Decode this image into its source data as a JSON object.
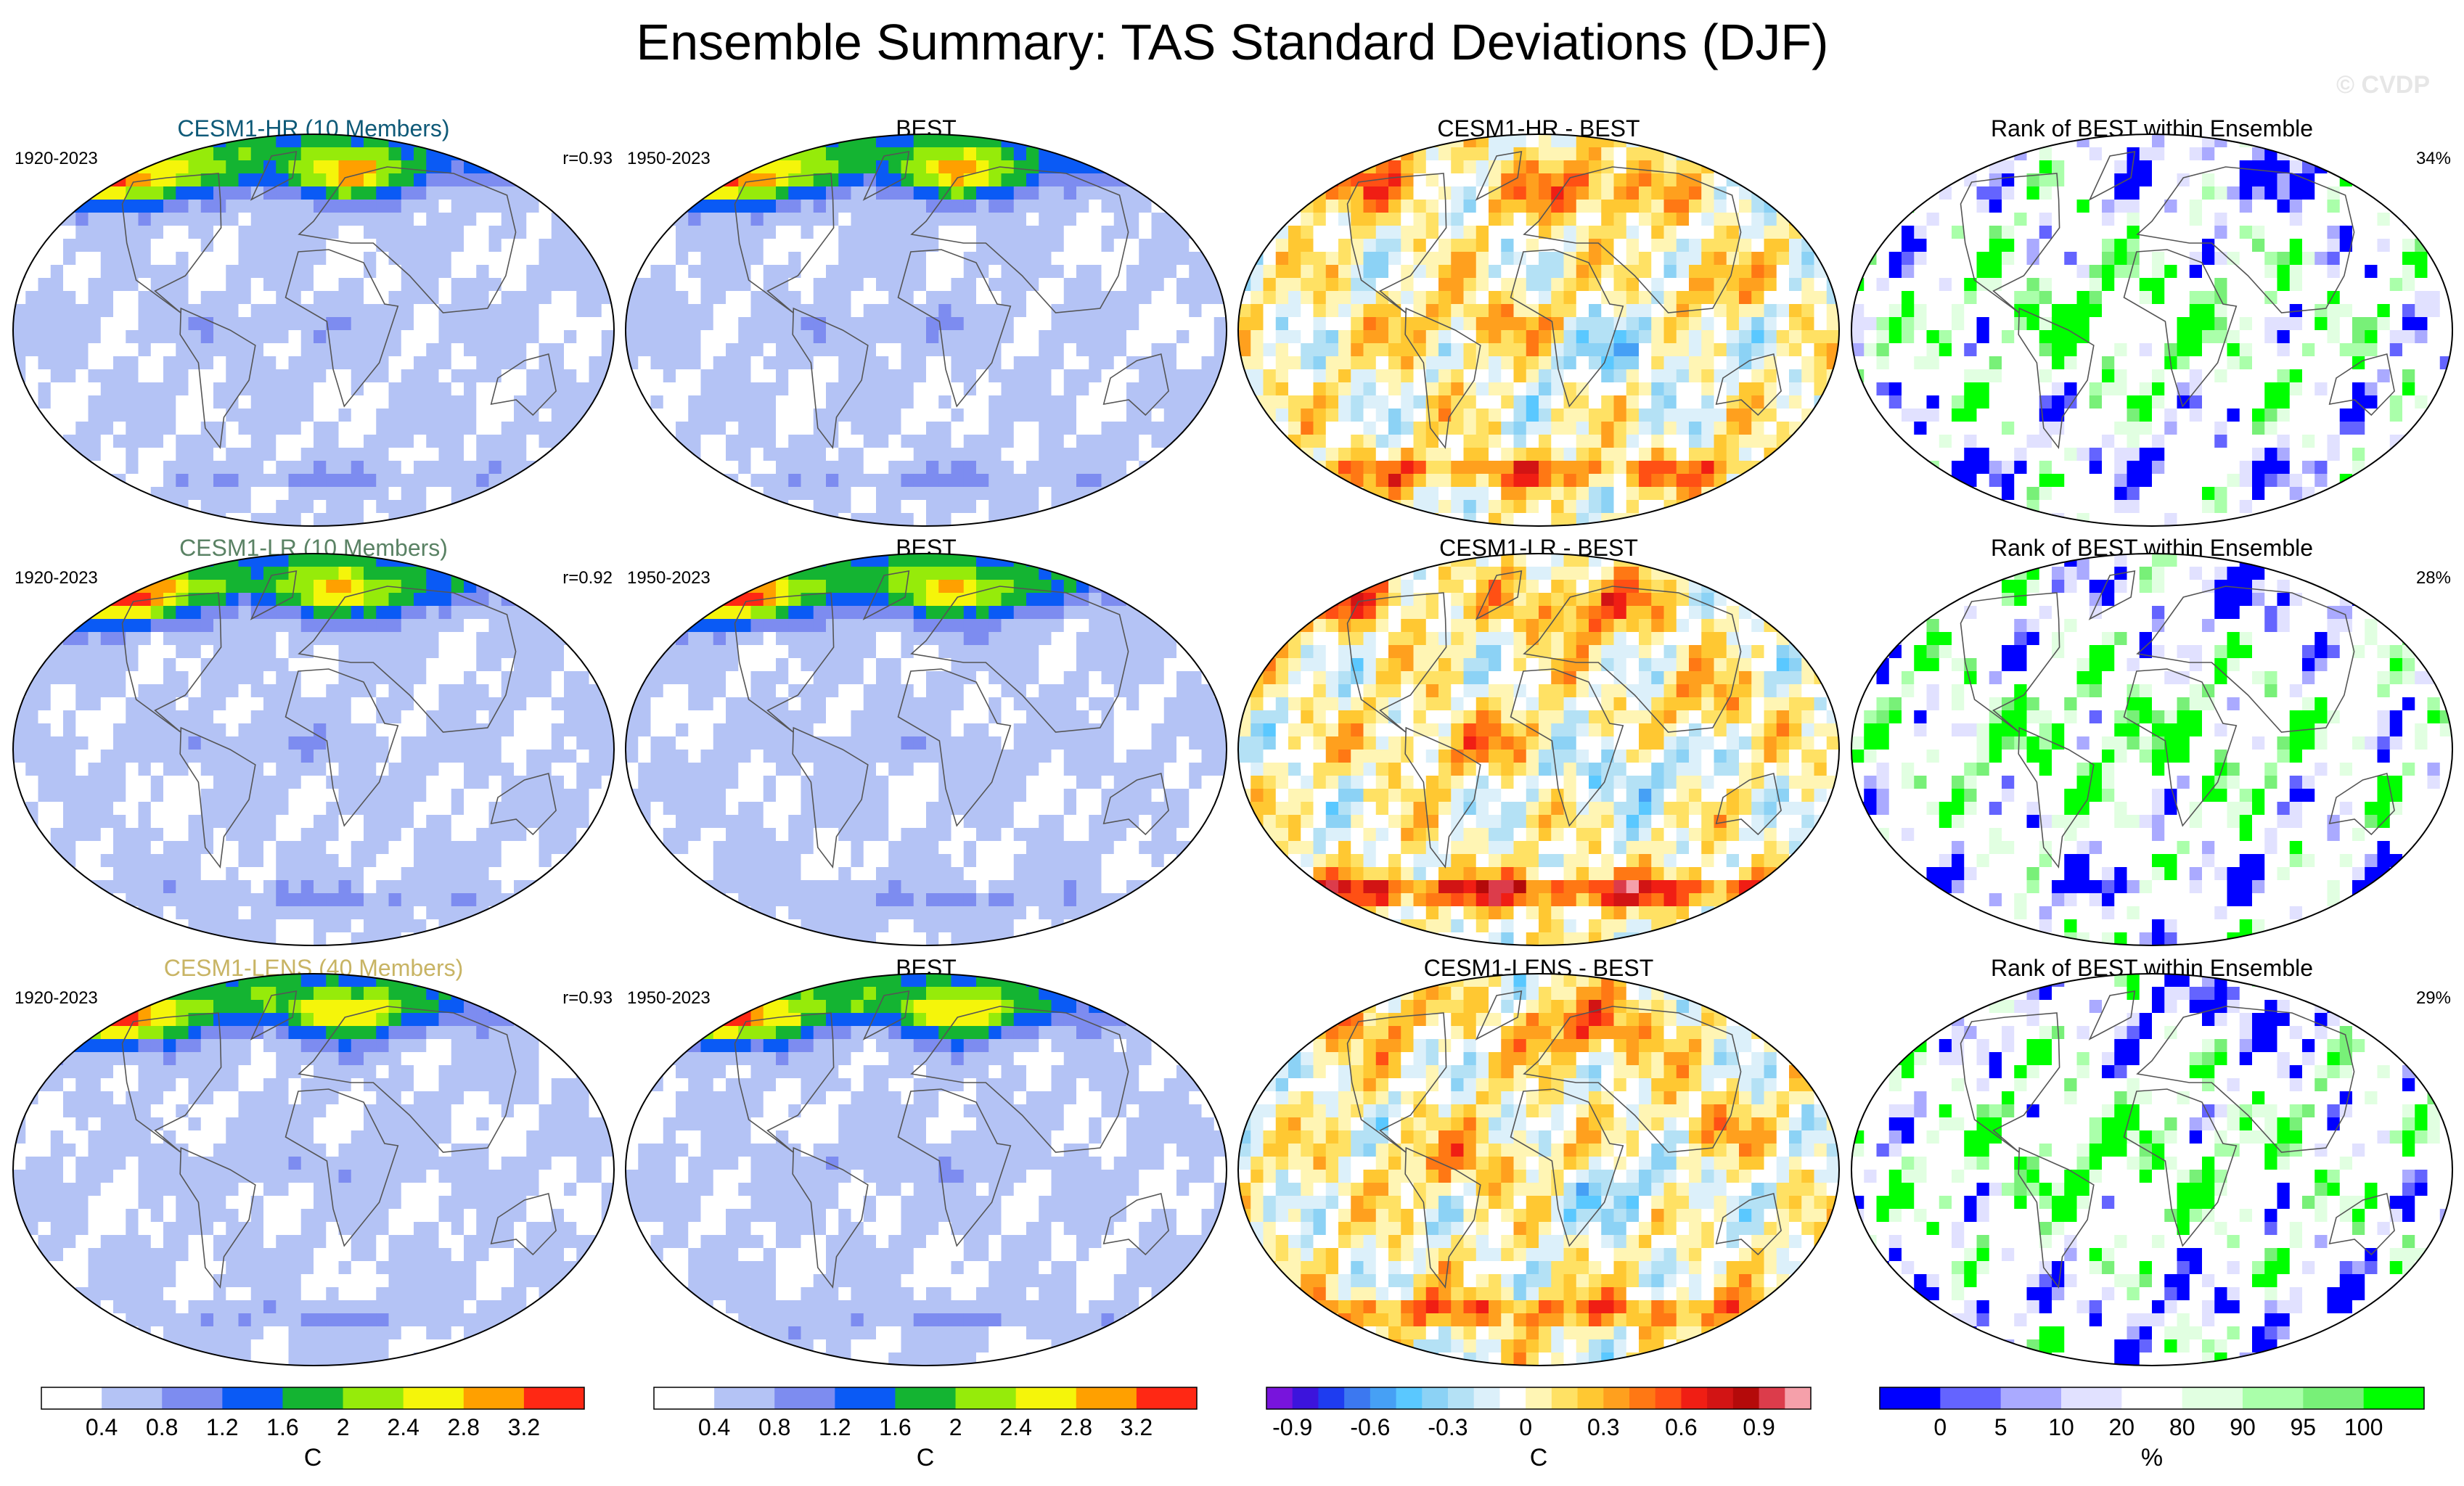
{
  "figure": {
    "title": "Ensemble Summary: TAS Standard Deviations (DJF)",
    "watermark": "© CVDP"
  },
  "colors": {
    "continents": "#555555",
    "tas_levels": [
      "#ffffff",
      "#b4c3f5",
      "#7d8cf0",
      "#0a5af5",
      "#14b432",
      "#96eb0a",
      "#f5f50a",
      "#ffa000",
      "#ff2814"
    ],
    "diff_levels": [
      "#7814dc",
      "#3c14dc",
      "#1e3cf0",
      "#3c78f0",
      "#46a0f5",
      "#5ac8ff",
      "#8cd2f5",
      "#b4e1f5",
      "#dcf0fa",
      "#ffffff",
      "#fff5b4",
      "#ffe164",
      "#ffc832",
      "#ffa01e",
      "#ff7814",
      "#ff5014",
      "#f01e14",
      "#d21414",
      "#b40a0a",
      "#dc3c4b",
      "#f5a0aa"
    ],
    "rank_levels": [
      "#0000ff",
      "#6464ff",
      "#aaaaff",
      "#e1e1ff",
      "#ffffff",
      "#e1ffe1",
      "#aaffaa",
      "#78f078",
      "#00ff00"
    ]
  },
  "chart_data": [
    {
      "type": "heatmap",
      "row": "CESM1-HR",
      "column": "model",
      "title": "CESM1-HR (10 Members)",
      "title_color": "#0f5a78",
      "left_label": "1920-2023",
      "right_label": "r=0.93",
      "field": "tas_stddev",
      "units": "C"
    },
    {
      "type": "heatmap",
      "row": "CESM1-HR",
      "column": "obs",
      "title": "BEST",
      "title_color": "#000000",
      "left_label": "1950-2023",
      "right_label": "",
      "field": "tas_stddev",
      "units": "C"
    },
    {
      "type": "heatmap",
      "row": "CESM1-HR",
      "column": "difference",
      "title": "CESM1-HR - BEST",
      "title_color": "#000000",
      "left_label": "",
      "right_label": "",
      "field": "difference",
      "units": "C"
    },
    {
      "type": "heatmap",
      "row": "CESM1-HR",
      "column": "rank",
      "title": "Rank of BEST within Ensemble",
      "title_color": "#000000",
      "left_label": "",
      "right_label": "34%",
      "field": "rank",
      "units": "%"
    },
    {
      "type": "heatmap",
      "row": "CESM1-LR",
      "column": "model",
      "title": "CESM1-LR (10 Members)",
      "title_color": "#5a8264",
      "left_label": "1920-2023",
      "right_label": "r=0.92",
      "field": "tas_stddev",
      "units": "C"
    },
    {
      "type": "heatmap",
      "row": "CESM1-LR",
      "column": "obs",
      "title": "BEST",
      "title_color": "#000000",
      "left_label": "1950-2023",
      "right_label": "",
      "field": "tas_stddev",
      "units": "C"
    },
    {
      "type": "heatmap",
      "row": "CESM1-LR",
      "column": "difference",
      "title": "CESM1-LR - BEST",
      "title_color": "#000000",
      "left_label": "",
      "right_label": "",
      "field": "difference",
      "units": "C"
    },
    {
      "type": "heatmap",
      "row": "CESM1-LR",
      "column": "rank",
      "title": "Rank of BEST within Ensemble",
      "title_color": "#000000",
      "left_label": "",
      "right_label": "28%",
      "field": "rank",
      "units": "%"
    },
    {
      "type": "heatmap",
      "row": "CESM1-LENS",
      "column": "model",
      "title": "CESM1-LENS (40 Members)",
      "title_color": "#c8b464",
      "left_label": "1920-2023",
      "right_label": "r=0.93",
      "field": "tas_stddev",
      "units": "C"
    },
    {
      "type": "heatmap",
      "row": "CESM1-LENS",
      "column": "obs",
      "title": "BEST",
      "title_color": "#000000",
      "left_label": "1950-2023",
      "right_label": "",
      "field": "tas_stddev",
      "units": "C"
    },
    {
      "type": "heatmap",
      "row": "CESM1-LENS",
      "column": "difference",
      "title": "CESM1-LENS - BEST",
      "title_color": "#000000",
      "left_label": "",
      "right_label": "",
      "field": "difference",
      "units": "C"
    },
    {
      "type": "heatmap",
      "row": "CESM1-LENS",
      "column": "rank",
      "title": "Rank of BEST within Ensemble",
      "title_color": "#000000",
      "left_label": "",
      "right_label": "29%",
      "field": "rank",
      "units": "%"
    }
  ],
  "colorbars": [
    {
      "name": "tas-stddev-model",
      "field": "tas_stddev",
      "units": "C",
      "ticks": [
        "0.4",
        "0.8",
        "1.2",
        "1.6",
        "2",
        "2.4",
        "2.8",
        "3.2"
      ]
    },
    {
      "name": "tas-stddev-obs",
      "field": "tas_stddev",
      "units": "C",
      "ticks": [
        "0.4",
        "0.8",
        "1.2",
        "1.6",
        "2",
        "2.4",
        "2.8",
        "3.2"
      ]
    },
    {
      "name": "difference",
      "field": "difference",
      "units": "C",
      "ticks": [
        "-0.9",
        "-0.6",
        "-0.3",
        "0",
        "0.3",
        "0.6",
        "0.9"
      ]
    },
    {
      "name": "rank",
      "field": "rank",
      "units": "%",
      "ticks": [
        "0",
        "5",
        "10",
        "20",
        "80",
        "90",
        "95",
        "100"
      ]
    }
  ]
}
